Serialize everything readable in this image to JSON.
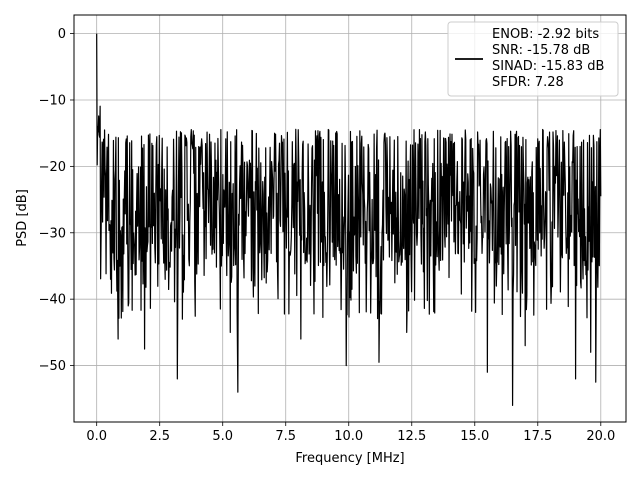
{
  "chart_data": {
    "type": "line",
    "title": "",
    "xlabel": "Frequency [MHz]",
    "ylabel": "PSD [dB]",
    "xlim": [
      -0.9,
      21.0
    ],
    "ylim": [
      -58.5,
      2.8
    ],
    "grid": true,
    "legend": {
      "placement": "top-right",
      "entries": [
        "ENOB: -2.92 bits",
        "SNR: -15.78 dB",
        "SINAD: -15.83 dB",
        "SFDR: 7.28"
      ]
    },
    "x_ticks": [
      {
        "value": 0.0,
        "label": "0.0"
      },
      {
        "value": 2.5,
        "label": "2.5"
      },
      {
        "value": 5.0,
        "label": "5.0"
      },
      {
        "value": 7.5,
        "label": "7.5"
      },
      {
        "value": 10.0,
        "label": "10.0"
      },
      {
        "value": 12.5,
        "label": "12.5"
      },
      {
        "value": 15.0,
        "label": "15.0"
      },
      {
        "value": 17.5,
        "label": "17.5"
      },
      {
        "value": 20.0,
        "label": "20.0"
      }
    ],
    "y_ticks": [
      {
        "value": 0,
        "label": "0"
      },
      {
        "value": -10,
        "label": "−10"
      },
      {
        "value": -20,
        "label": "−20"
      },
      {
        "value": -30,
        "label": "−30"
      },
      {
        "value": -40,
        "label": "−40"
      },
      {
        "value": -50,
        "label": "−50"
      }
    ],
    "series": [
      {
        "color": "#000000",
        "x_range": [
          0.0,
          20.0
        ],
        "n_points": 1024,
        "peak": {
          "x": 0.0,
          "y": 0.0
        },
        "dc_region_y": [
          -7.5,
          -20.5
        ],
        "noise_floor_mean": -27.0,
        "upper_envelope": -16.5,
        "deep_nulls": [
          {
            "x": 0.55,
            "y": -37.0
          },
          {
            "x": 0.85,
            "y": -46.0
          },
          {
            "x": 1.9,
            "y": -47.5
          },
          {
            "x": 3.2,
            "y": -52.0
          },
          {
            "x": 3.4,
            "y": -43.0
          },
          {
            "x": 5.6,
            "y": -54.0
          },
          {
            "x": 5.3,
            "y": -45.0
          },
          {
            "x": 8.1,
            "y": -46.0
          },
          {
            "x": 9.9,
            "y": -50.0
          },
          {
            "x": 11.2,
            "y": -49.5
          },
          {
            "x": 12.3,
            "y": -45.0
          },
          {
            "x": 15.5,
            "y": -51.0
          },
          {
            "x": 16.5,
            "y": -56.0
          },
          {
            "x": 17.0,
            "y": -47.0
          },
          {
            "x": 19.0,
            "y": -52.0
          },
          {
            "x": 19.8,
            "y": -52.5
          },
          {
            "x": 19.6,
            "y": -48.0
          }
        ]
      }
    ]
  }
}
